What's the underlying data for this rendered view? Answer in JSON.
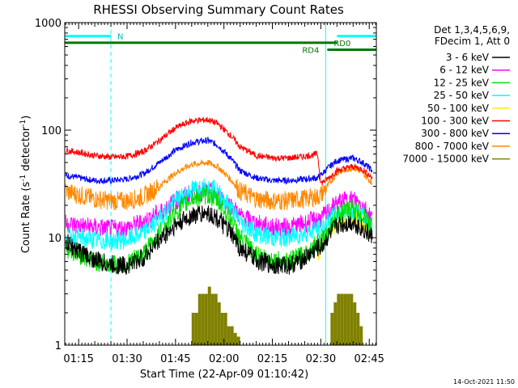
{
  "chart_data": {
    "type": "line",
    "title": "RHESSI Observing Summary Count Rates",
    "ylabel": "Count Rate (s⁻¹ detector⁻¹)",
    "xlabel": "Start Time (22-Apr-09 01:10:42)",
    "yscale": "log",
    "ylim": [
      1,
      1000
    ],
    "x_minutes_after_0100": [
      10.7,
      107.2
    ],
    "x_ticks": [
      "01:15",
      "01:30",
      "01:45",
      "02:00",
      "02:15",
      "02:30",
      "02:45"
    ],
    "x_tick_minutes": [
      15,
      30,
      45,
      60,
      75,
      90,
      105
    ],
    "y_ticks": [
      "1",
      "10",
      "100",
      "1000"
    ],
    "y_tick_values": [
      1,
      10,
      100,
      1000
    ],
    "legend_header": [
      "Det 1,3,4,5,6,9,",
      "FDecim 1, Att 0"
    ],
    "legend_position": "right",
    "footer_date": "14-Oct-2021 11:50",
    "time_axis_minutes": [
      11,
      15,
      20,
      25,
      30,
      35,
      40,
      45,
      50,
      55,
      58,
      62,
      65,
      70,
      75,
      80,
      85,
      89,
      90,
      92,
      95,
      100,
      103,
      106
    ],
    "series": [
      {
        "name": "3 - 6 keV",
        "color": "#000000",
        "values": [
          9,
          7.5,
          6.2,
          5.6,
          5.5,
          6.5,
          9.5,
          13,
          16,
          17,
          15,
          11,
          8,
          6.2,
          5.6,
          5.5,
          6.4,
          8,
          8,
          10,
          13,
          14,
          12,
          10
        ]
      },
      {
        "name": "6 - 12 keV",
        "color": "#ff00ff",
        "values": [
          13.5,
          13,
          12.5,
          12,
          12.3,
          14,
          17,
          22,
          26,
          27,
          25,
          20,
          16,
          13.5,
          12.5,
          12.5,
          13.5,
          15,
          15,
          17,
          21,
          23,
          20,
          15
        ]
      },
      {
        "name": "12 - 25 keV",
        "color": "#00dd00",
        "values": [
          8,
          7,
          6,
          5.6,
          5.8,
          7,
          11,
          17,
          23,
          25,
          22,
          15,
          10,
          7,
          6.2,
          6,
          7,
          9,
          9,
          11,
          16,
          19,
          16,
          13
        ]
      },
      {
        "name": "25 - 50 keV",
        "color": "#00ffff",
        "values": [
          10.5,
          10,
          9.5,
          9.3,
          9.6,
          11,
          15,
          22,
          28,
          30,
          27,
          19,
          14,
          11,
          10,
          10,
          11,
          12,
          12,
          14,
          17,
          18,
          16,
          13
        ]
      },
      {
        "name": "50 - 100 keV",
        "color": "#ffee00",
        "values": [
          null,
          null,
          null,
          null,
          null,
          null,
          null,
          null,
          null,
          null,
          null,
          null,
          null,
          null,
          null,
          null,
          null,
          7,
          8,
          11,
          14,
          16,
          14,
          13
        ]
      },
      {
        "name": "100 - 300 keV",
        "color": "#ff0000",
        "values": [
          65,
          62,
          58,
          56,
          57,
          63,
          80,
          105,
          122,
          125,
          115,
          90,
          70,
          58,
          55,
          55,
          57,
          60,
          32,
          35,
          42,
          46,
          43,
          36
        ]
      },
      {
        "name": "300 - 800 keV",
        "color": "#0000ff",
        "values": [
          38,
          36,
          34,
          34,
          35,
          39,
          50,
          65,
          77,
          80,
          73,
          55,
          42,
          36,
          34,
          34,
          35,
          36,
          38,
          44,
          52,
          55,
          50,
          42
        ]
      },
      {
        "name": "800 - 7000 keV",
        "color": "#ff8800",
        "values": [
          27,
          25,
          23,
          22,
          22,
          24,
          30,
          40,
          48,
          50,
          46,
          35,
          27,
          23,
          22,
          22,
          23,
          24,
          25,
          30,
          40,
          45,
          40,
          32
        ]
      },
      {
        "name": "7000 - 15000 keV",
        "color": "#808000",
        "values": [
          null,
          null,
          null,
          null,
          null,
          null,
          null,
          null,
          null,
          null,
          null,
          null,
          null,
          null,
          null,
          null,
          null,
          null,
          null,
          null,
          null,
          null,
          null,
          null
        ]
      }
    ],
    "high_energy_bars": {
      "color": "#808000",
      "minutes": [
        50,
        51,
        52,
        53,
        54,
        55,
        56,
        57,
        58,
        59,
        60,
        61,
        62,
        63,
        64,
        93,
        94,
        95,
        96,
        97,
        98,
        99,
        100,
        101,
        102
      ],
      "values": [
        2,
        2,
        3,
        3,
        3,
        3.5,
        3,
        3,
        2.5,
        2,
        2,
        1.5,
        1.5,
        1.3,
        1.2,
        2,
        2.5,
        3,
        3,
        3,
        3,
        3,
        2.5,
        2,
        1.5
      ]
    },
    "annotations": {
      "night_label": "N",
      "rd0_label": "RD0",
      "rd4_label": "RD4",
      "night_bands_minutes": [
        [
          10.7,
          25
        ],
        [
          91.5,
          107.2
        ]
      ],
      "cyan_bar_level": 750,
      "green_bar_level": 650,
      "green_bar2_level": 560
    }
  }
}
